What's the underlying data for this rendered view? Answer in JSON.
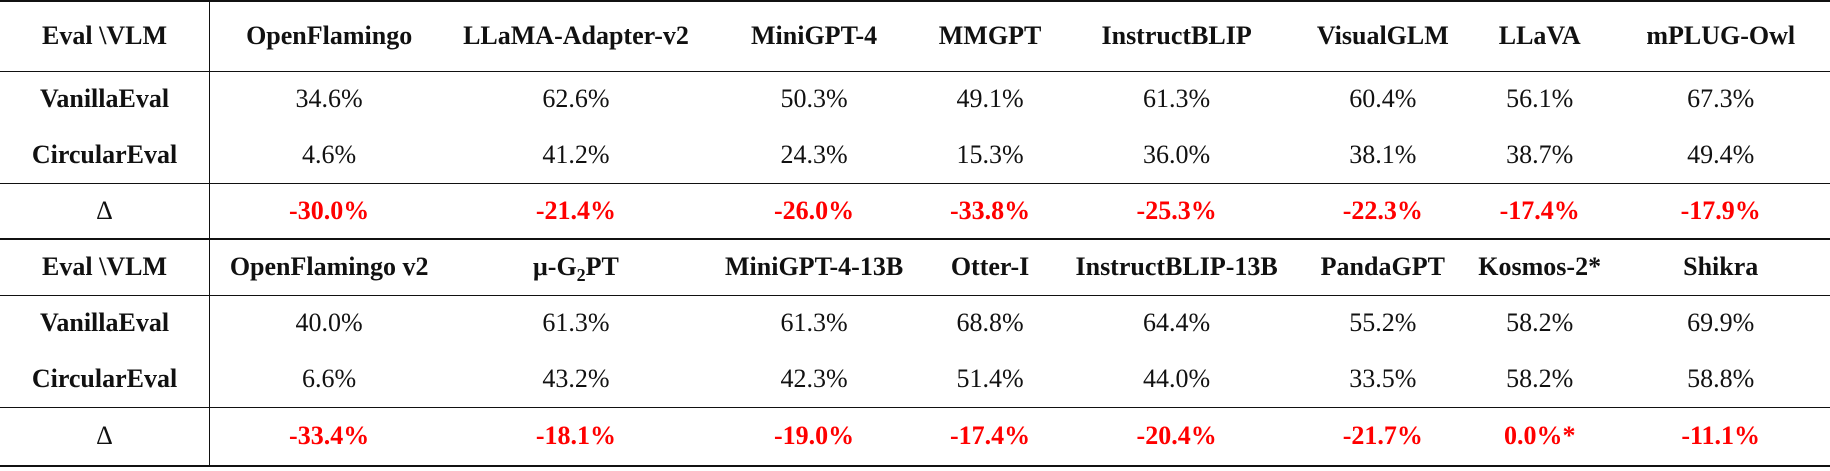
{
  "table": {
    "block1": {
      "header": {
        "corner": "Eval \\VLM",
        "models": [
          "OpenFlamingo",
          "LLaMA-Adapter-v2",
          "MiniGPT-4",
          "MMGPT",
          "InstructBLIP",
          "VisualGLM",
          "LLaVA",
          "mPLUG-Owl"
        ]
      },
      "rows": [
        {
          "label": "VanillaEval",
          "values": [
            "34.6%",
            "62.6%",
            "50.3%",
            "49.1%",
            "61.3%",
            "60.4%",
            "56.1%",
            "67.3%"
          ]
        },
        {
          "label": "CircularEval",
          "values": [
            "4.6%",
            "41.2%",
            "24.3%",
            "15.3%",
            "36.0%",
            "38.1%",
            "38.7%",
            "49.4%"
          ]
        }
      ],
      "delta": {
        "label": "Δ",
        "values": [
          "-30.0%",
          "-21.4%",
          "-26.0%",
          "-33.8%",
          "-25.3%",
          "-22.3%",
          "-17.4%",
          "-17.9%"
        ]
      }
    },
    "block2": {
      "header": {
        "corner": "Eval \\VLM",
        "models": [
          "OpenFlamingo v2",
          "μ-G",
          "MiniGPT-4-13B",
          "Otter-I",
          "InstructBLIP-13B",
          "PandaGPT",
          "Kosmos-2*",
          "Shikra"
        ],
        "model2_sub": "2",
        "model2_suffix": "PT"
      },
      "rows": [
        {
          "label": "VanillaEval",
          "values": [
            "40.0%",
            "61.3%",
            "61.3%",
            "68.8%",
            "64.4%",
            "55.2%",
            "58.2%",
            "69.9%"
          ]
        },
        {
          "label": "CircularEval",
          "values": [
            "6.6%",
            "43.2%",
            "42.3%",
            "51.4%",
            "44.0%",
            "33.5%",
            "58.2%",
            "58.8%"
          ]
        }
      ],
      "delta": {
        "label": "Δ",
        "values": [
          "-33.4%",
          "-18.1%",
          "-19.0%",
          "-17.4%",
          "-20.4%",
          "-21.7%",
          "0.0%*",
          "-11.1%"
        ]
      }
    }
  }
}
